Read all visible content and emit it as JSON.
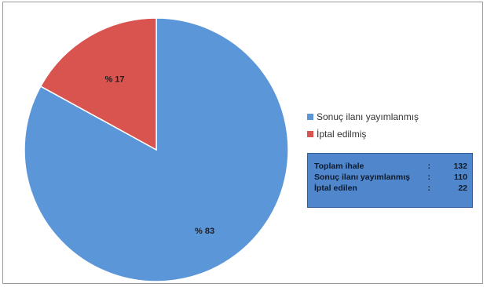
{
  "chart_data": {
    "type": "pie",
    "slices": [
      {
        "name": "Sonuç ilanı yayımlanmış",
        "value": 83,
        "label": "% 83",
        "color": "#5b96d9"
      },
      {
        "name": "İptal edilmiş",
        "value": 17,
        "label": "% 17",
        "color": "#d9534f"
      }
    ]
  },
  "legend": {
    "items": [
      {
        "label": "Sonuç ilanı yayımlanmış",
        "color": "#5b96d9"
      },
      {
        "label": "İptal edilmiş",
        "color": "#d9534f"
      }
    ]
  },
  "summary": {
    "rows": [
      {
        "label": "Toplam ihale",
        "value": "132"
      },
      {
        "label": "Sonuç ilanı yayımlanmış",
        "value": "110"
      },
      {
        "label": "İptal edilen",
        "value": "22"
      }
    ]
  }
}
